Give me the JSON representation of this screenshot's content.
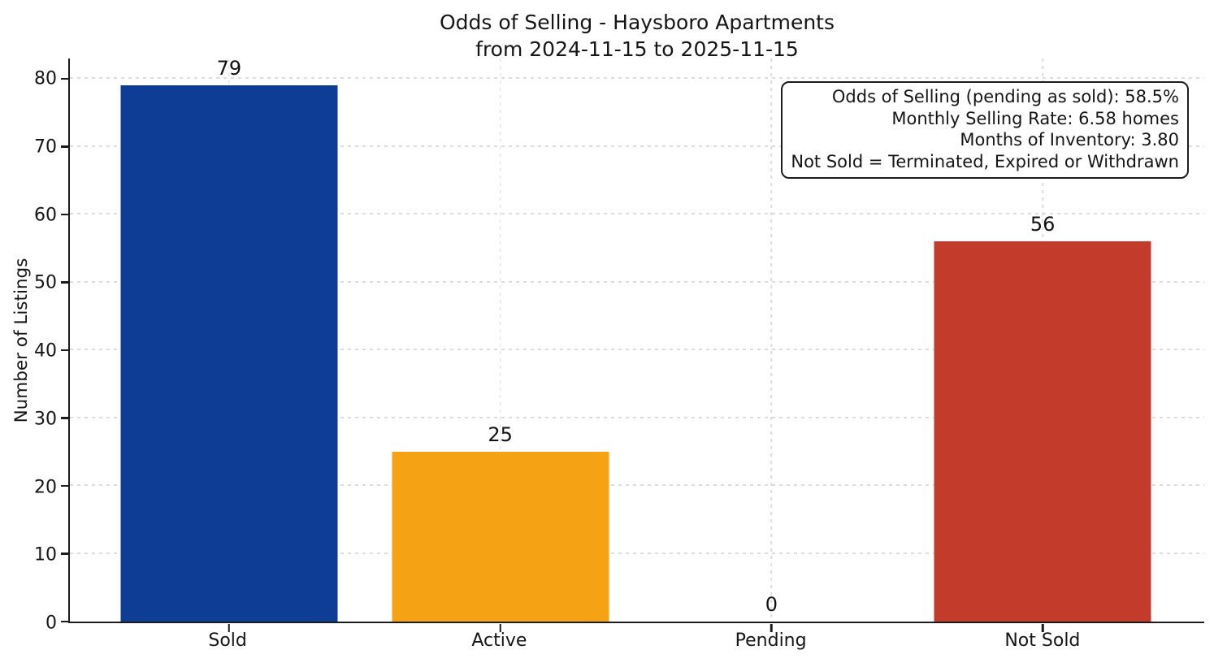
{
  "chart_data": {
    "type": "bar",
    "title": "Odds of Selling - Haysboro Apartments",
    "subtitle": "from 2024-11-15 to 2025-11-15",
    "categories": [
      "Sold",
      "Active",
      "Pending",
      "Not Sold"
    ],
    "values": [
      79,
      25,
      0,
      56
    ],
    "colors": {
      "Sold": "#0d3d94",
      "Active": "#f5a214",
      "Not Sold": "#c23b2b"
    },
    "value_labels": [
      "79",
      "25",
      "0",
      "56"
    ],
    "xlabel": "",
    "ylabel": "Number of Listings",
    "ylim": [
      0,
      83
    ],
    "yticks": [
      0,
      10,
      20,
      30,
      40,
      50,
      60,
      70,
      80
    ],
    "grid": true,
    "grid_style": "dashed",
    "grid_color": "#dcdcdc",
    "spine_color": "#1c1c1c",
    "background_color": "#ffffff",
    "legend_position": "none",
    "annotation_lines": [
      "Odds of Selling (pending as sold): 58.5%",
      "Monthly Selling Rate: 6.58 homes",
      "Months of Inventory: 3.80",
      "Not Sold = Terminated, Expired or Withdrawn"
    ]
  }
}
